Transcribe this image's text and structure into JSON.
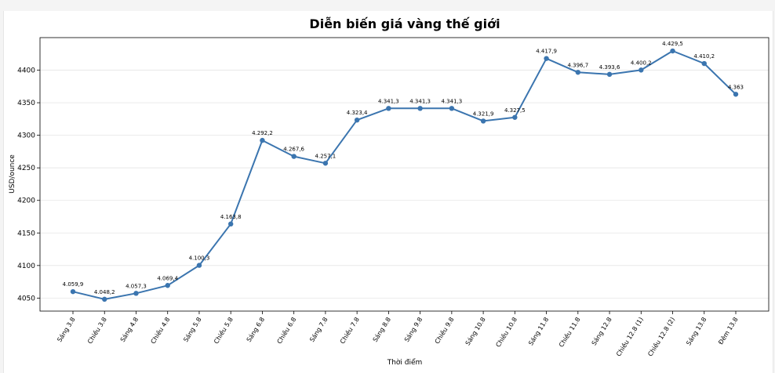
{
  "chart_data": {
    "type": "line",
    "title": "Diễn biến giá vàng thế giới",
    "xlabel": "Thời điểm",
    "ylabel": "USD/ounce",
    "ylim": [
      4030,
      4450
    ],
    "yticks": [
      4050,
      4100,
      4150,
      4200,
      4250,
      4300,
      4350,
      4400
    ],
    "grid": "horizontal",
    "line_color": "#3b75af",
    "categories": [
      "Sáng 3.8",
      "Chiều 3.8",
      "Sáng 4.8",
      "Chiều 4.8",
      "Sáng 5.8",
      "Chiều 5.8",
      "Sáng 6.8",
      "Chiều 6.8",
      "Sáng 7.8",
      "Chiều 7.8",
      "Sáng 8.8",
      "Sáng 9.8",
      "Chiều 9.8",
      "Sáng 10.8",
      "Chiều 10.8",
      "Sáng 11.8",
      "Chiều 11.8",
      "Sáng 12.8",
      "Chiều 12.8 (1)",
      "Chiều 12.8 (2)",
      "Sáng 13.8",
      "Đêm 13.8"
    ],
    "values": [
      4059.9,
      4048.2,
      4057.3,
      4069.4,
      4100.3,
      4163.8,
      4292.2,
      4267.6,
      4257.1,
      4323.4,
      4341.3,
      4341.3,
      4341.3,
      4321.9,
      4327.5,
      4417.9,
      4396.7,
      4393.6,
      4400.2,
      4429.5,
      4410.2,
      4363
    ],
    "data_labels": [
      "4.059,9",
      "4.048,2",
      "4.057,3",
      "4.069,4",
      "4.100,3",
      "4.163,8",
      "4.292,2",
      "4.267,6",
      "4.257,1",
      "4.323,4",
      "4.341,3",
      "4.341,3",
      "4.341,3",
      "4.321,9",
      "4.327,5",
      "4.417,9",
      "4.396,7",
      "4.393,6",
      "4.400,2",
      "4.429,5",
      "4.410,2",
      "4.363"
    ]
  }
}
